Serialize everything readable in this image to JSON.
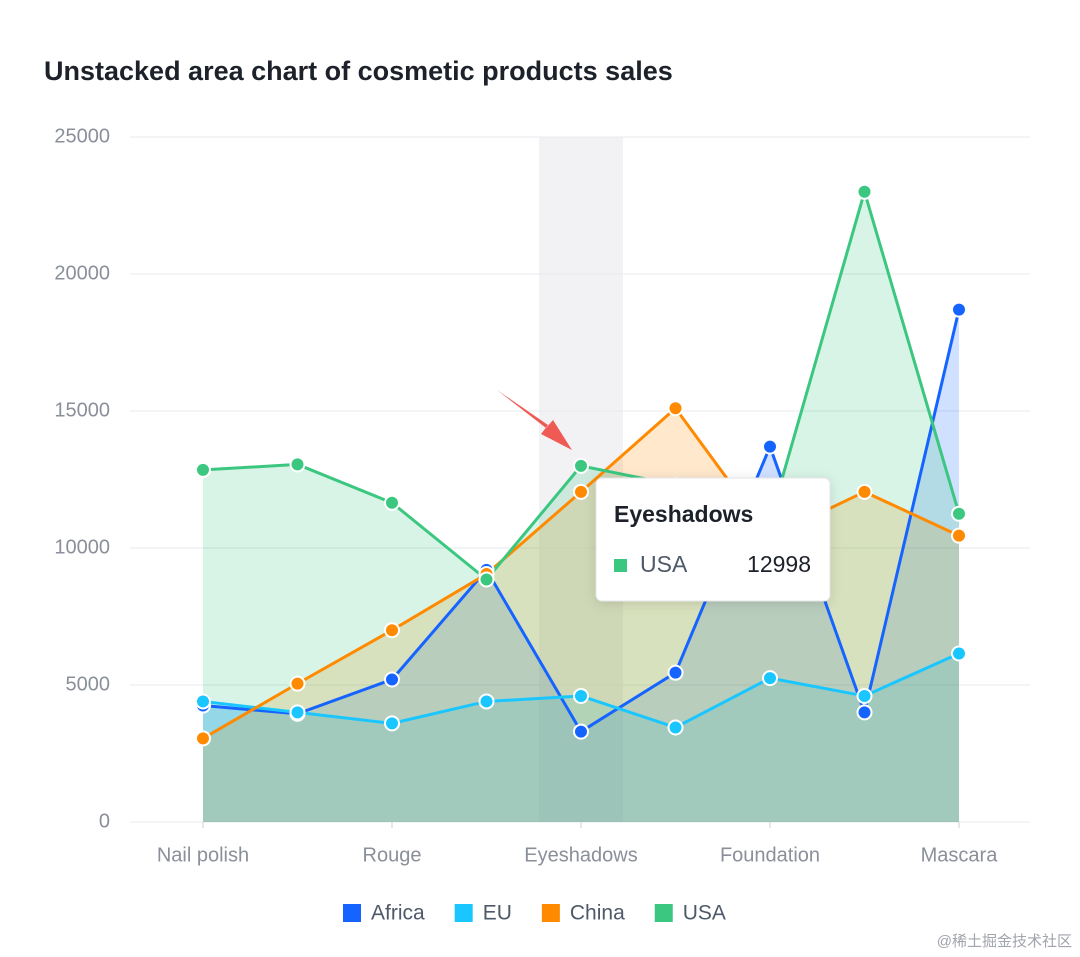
{
  "chart_data": {
    "type": "area",
    "title": "Unstacked area chart of cosmetic products sales",
    "categories": [
      "Nail polish",
      null,
      "Rouge",
      null,
      "Eyeshadows",
      null,
      "Foundation",
      null,
      "Mascara"
    ],
    "series": [
      {
        "name": "Africa",
        "color": "#1664ff",
        "values": [
          4250,
          3950,
          5200,
          9200,
          3300,
          5450,
          13700,
          4000,
          18700
        ]
      },
      {
        "name": "EU",
        "color": "#1ac6ff",
        "values": [
          4400,
          4000,
          3600,
          4400,
          4600,
          3450,
          5250,
          4600,
          6150
        ]
      },
      {
        "name": "China",
        "color": "#ff8a00",
        "values": [
          3050,
          5050,
          7000,
          9050,
          12050,
          15100,
          10400,
          12050,
          10450
        ]
      },
      {
        "name": "USA",
        "color": "#3cc780",
        "values": [
          12850,
          13050,
          11650,
          8850,
          12998,
          12300,
          11000,
          23000,
          11250
        ]
      }
    ],
    "ylim": [
      0,
      25000
    ],
    "yticks": [
      0,
      5000,
      10000,
      15000,
      20000,
      25000
    ],
    "grid": true,
    "legend": "bottom",
    "tooltip": {
      "category_index": 4,
      "series_index": 3
    },
    "watermark": "@稀土掘金技术社区"
  }
}
